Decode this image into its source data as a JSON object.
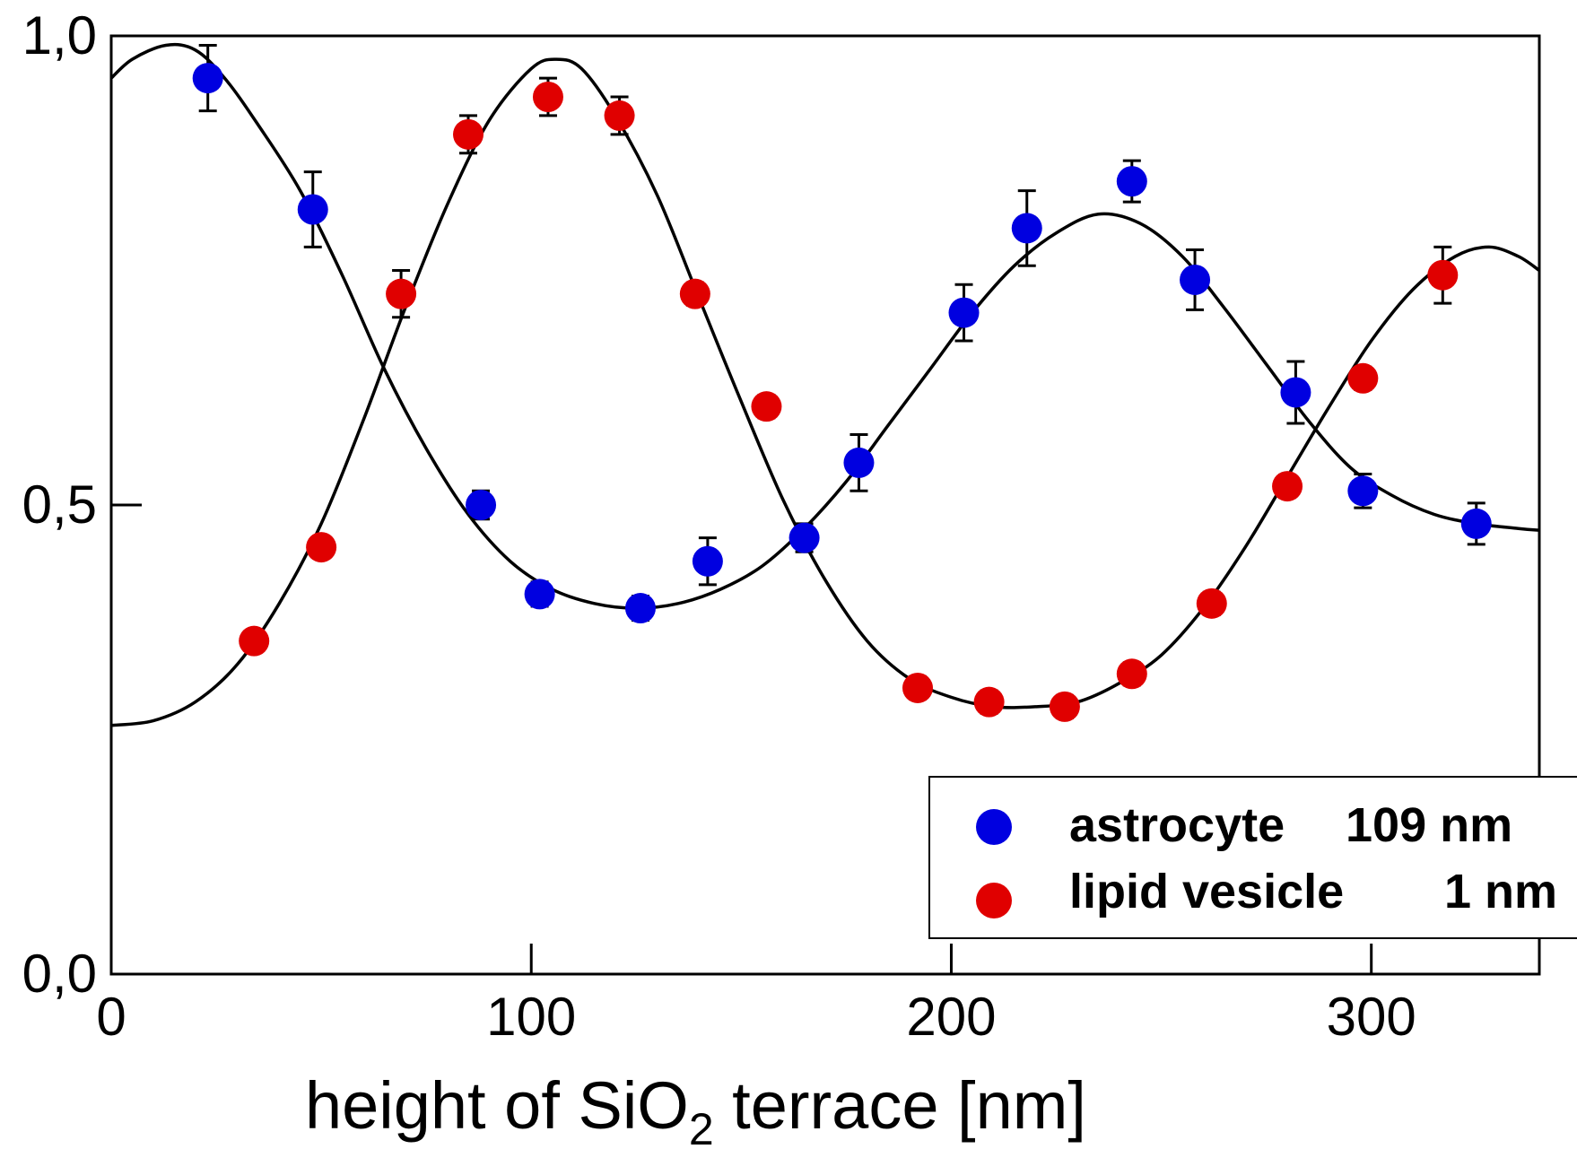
{
  "chart_data": {
    "type": "scatter",
    "title": "",
    "xlabel": "height of SiO",
    "xlabel_subscript": "2",
    "xlabel_suffix": " terrace [nm]",
    "ylabel": "",
    "xlim": [
      0,
      340
    ],
    "ylim": [
      0,
      1
    ],
    "x_ticks": [
      0,
      100,
      200,
      300
    ],
    "x_tick_labels": [
      "0",
      "100",
      "200",
      "300"
    ],
    "y_ticks": [
      0,
      0.5,
      1
    ],
    "y_tick_labels": [
      "0,0",
      "0,5",
      "1,0"
    ],
    "grid": false,
    "legend_position": "bottom-right",
    "series": [
      {
        "name": "astrocyte",
        "legend_value": "109 nm",
        "color": "#0000e0",
        "points": [
          {
            "x": 23,
            "y": 0.955,
            "err": 0.035
          },
          {
            "x": 48,
            "y": 0.815,
            "err": 0.04
          },
          {
            "x": 88,
            "y": 0.5,
            "err": 0.015
          },
          {
            "x": 102,
            "y": 0.405,
            "err": 0.013
          },
          {
            "x": 126,
            "y": 0.39,
            "err": 0.013
          },
          {
            "x": 142,
            "y": 0.44,
            "err": 0.025
          },
          {
            "x": 165,
            "y": 0.465,
            "err": 0.015
          },
          {
            "x": 178,
            "y": 0.545,
            "err": 0.03
          },
          {
            "x": 203,
            "y": 0.705,
            "err": 0.03
          },
          {
            "x": 218,
            "y": 0.795,
            "err": 0.04
          },
          {
            "x": 243,
            "y": 0.845,
            "err": 0.022
          },
          {
            "x": 258,
            "y": 0.74,
            "err": 0.032
          },
          {
            "x": 282,
            "y": 0.62,
            "err": 0.033
          },
          {
            "x": 298,
            "y": 0.515,
            "err": 0.018
          },
          {
            "x": 325,
            "y": 0.48,
            "err": 0.022
          }
        ]
      },
      {
        "name": "lipid vesicle",
        "legend_value": "1 nm",
        "color": "#e00000",
        "points": [
          {
            "x": 34,
            "y": 0.355,
            "err": 0.01
          },
          {
            "x": 50,
            "y": 0.455,
            "err": 0.01
          },
          {
            "x": 69,
            "y": 0.725,
            "err": 0.025
          },
          {
            "x": 85,
            "y": 0.895,
            "err": 0.02
          },
          {
            "x": 104,
            "y": 0.935,
            "err": 0.02
          },
          {
            "x": 121,
            "y": 0.915,
            "err": 0.02
          },
          {
            "x": 139,
            "y": 0.725,
            "err": 0.012
          },
          {
            "x": 156,
            "y": 0.605,
            "err": 0.012
          },
          {
            "x": 192,
            "y": 0.305,
            "err": 0.012
          },
          {
            "x": 209,
            "y": 0.29,
            "err": 0.012
          },
          {
            "x": 227,
            "y": 0.285,
            "err": 0.012
          },
          {
            "x": 243,
            "y": 0.32,
            "err": 0.012
          },
          {
            "x": 262,
            "y": 0.395,
            "err": 0.012
          },
          {
            "x": 280,
            "y": 0.52,
            "err": 0.012
          },
          {
            "x": 298,
            "y": 0.635,
            "err": 0.012
          },
          {
            "x": 317,
            "y": 0.745,
            "err": 0.03
          }
        ]
      }
    ],
    "fit_curves": [
      {
        "for_series": "astrocyte",
        "color": "#000000",
        "points": [
          [
            0,
            0.955
          ],
          [
            5,
            0.975
          ],
          [
            13,
            0.99
          ],
          [
            20,
            0.985
          ],
          [
            27,
            0.955
          ],
          [
            35,
            0.905
          ],
          [
            45,
            0.835
          ],
          [
            55,
            0.745
          ],
          [
            65,
            0.645
          ],
          [
            75,
            0.56
          ],
          [
            85,
            0.49
          ],
          [
            95,
            0.44
          ],
          [
            105,
            0.41
          ],
          [
            115,
            0.395
          ],
          [
            125,
            0.39
          ],
          [
            135,
            0.395
          ],
          [
            145,
            0.41
          ],
          [
            155,
            0.435
          ],
          [
            165,
            0.475
          ],
          [
            175,
            0.525
          ],
          [
            185,
            0.585
          ],
          [
            195,
            0.645
          ],
          [
            205,
            0.705
          ],
          [
            215,
            0.755
          ],
          [
            225,
            0.79
          ],
          [
            235,
            0.81
          ],
          [
            245,
            0.8
          ],
          [
            255,
            0.765
          ],
          [
            265,
            0.71
          ],
          [
            275,
            0.65
          ],
          [
            285,
            0.59
          ],
          [
            295,
            0.54
          ],
          [
            305,
            0.51
          ],
          [
            315,
            0.49
          ],
          [
            325,
            0.48
          ],
          [
            335,
            0.475
          ],
          [
            340,
            0.473
          ]
        ]
      },
      {
        "for_series": "lipid vesicle",
        "color": "#000000",
        "points": [
          [
            0,
            0.265
          ],
          [
            10,
            0.27
          ],
          [
            20,
            0.29
          ],
          [
            30,
            0.33
          ],
          [
            40,
            0.395
          ],
          [
            50,
            0.48
          ],
          [
            60,
            0.59
          ],
          [
            70,
            0.71
          ],
          [
            80,
            0.82
          ],
          [
            90,
            0.91
          ],
          [
            100,
            0.965
          ],
          [
            106,
            0.975
          ],
          [
            112,
            0.965
          ],
          [
            120,
            0.915
          ],
          [
            130,
            0.83
          ],
          [
            140,
            0.72
          ],
          [
            150,
            0.61
          ],
          [
            160,
            0.505
          ],
          [
            170,
            0.42
          ],
          [
            180,
            0.355
          ],
          [
            190,
            0.315
          ],
          [
            200,
            0.295
          ],
          [
            210,
            0.285
          ],
          [
            220,
            0.285
          ],
          [
            230,
            0.29
          ],
          [
            240,
            0.31
          ],
          [
            250,
            0.34
          ],
          [
            260,
            0.39
          ],
          [
            270,
            0.455
          ],
          [
            280,
            0.53
          ],
          [
            290,
            0.605
          ],
          [
            300,
            0.675
          ],
          [
            310,
            0.73
          ],
          [
            320,
            0.765
          ],
          [
            328,
            0.775
          ],
          [
            335,
            0.765
          ],
          [
            340,
            0.75
          ]
        ]
      }
    ]
  }
}
